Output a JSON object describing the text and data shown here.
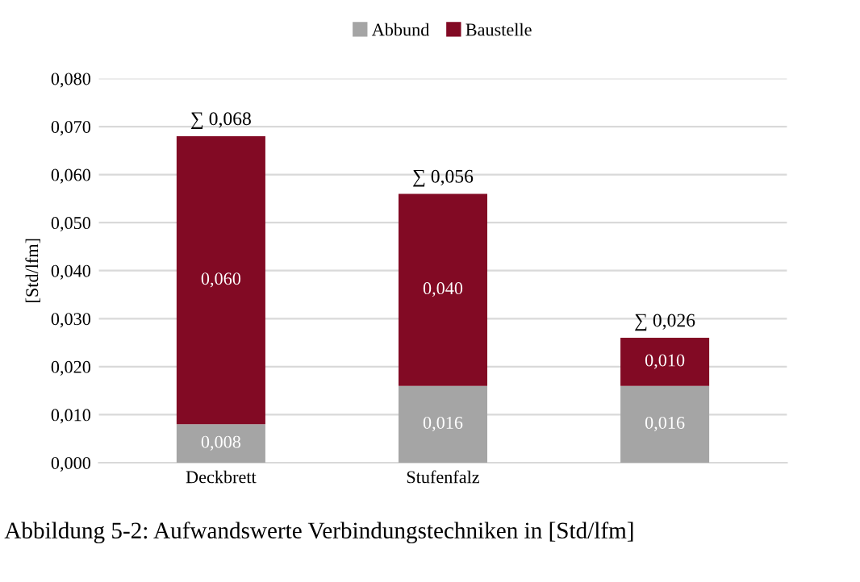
{
  "chart_data": {
    "type": "bar",
    "stacked": true,
    "ylabel": "[Std/lfm]",
    "categories": [
      "Deckbrett",
      "Stufenfalz",
      null
    ],
    "series": [
      {
        "name": "Abbund",
        "color": "#a5a5a5",
        "values": [
          0.008,
          0.016,
          0.016
        ],
        "value_labels": [
          "0,008",
          "0,016",
          "0,016"
        ]
      },
      {
        "name": "Baustelle",
        "color": "#820a24",
        "values": [
          0.06,
          0.04,
          0.01
        ],
        "value_labels": [
          "0,060",
          "0,040",
          "0,010"
        ]
      }
    ],
    "totals": [
      "∑ 0,068",
      "∑ 0,056",
      "∑ 0,026"
    ],
    "ylim": [
      0,
      0.08
    ],
    "yticks": [
      {
        "value": 0,
        "label": "0,000"
      },
      {
        "value": 0.01,
        "label": "0,010"
      },
      {
        "value": 0.02,
        "label": "0,020"
      },
      {
        "value": 0.03,
        "label": "0,030"
      },
      {
        "value": 0.04,
        "label": "0,040"
      },
      {
        "value": 0.05,
        "label": "0,050"
      },
      {
        "value": 0.06,
        "label": "0,060"
      },
      {
        "value": 0.07,
        "label": "0,070"
      },
      {
        "value": 0.08,
        "label": "0,080"
      }
    ],
    "grid": "y",
    "legend": "top",
    "annotations": [
      "Abbildung 5-2: Aufwandswerte Verbindungstechniken in [Std/lfm]"
    ]
  }
}
